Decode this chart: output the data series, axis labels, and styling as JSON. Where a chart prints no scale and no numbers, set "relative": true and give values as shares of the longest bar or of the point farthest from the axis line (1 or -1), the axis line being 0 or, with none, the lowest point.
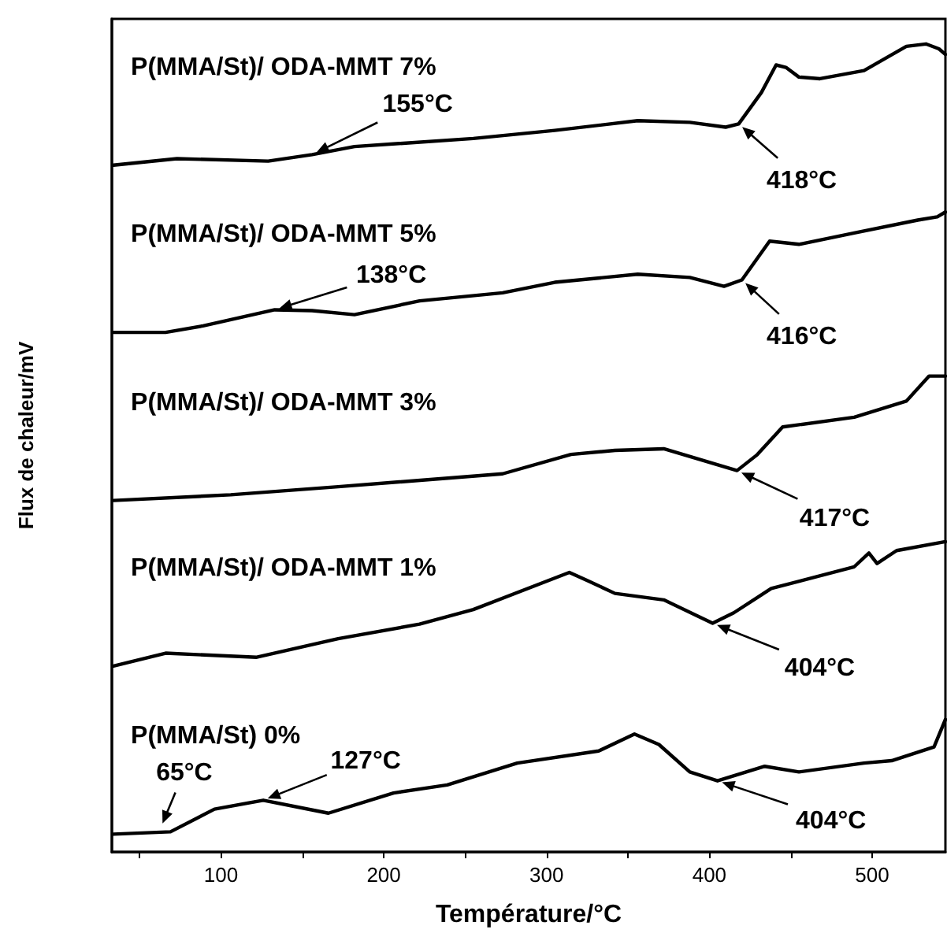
{
  "chart_data": {
    "type": "line",
    "relative": true,
    "xlabel": "Température/°C",
    "ylabel": "Flux de chaleur/mV",
    "xlim": [
      33,
      545
    ],
    "xticks": [
      {
        "value": 50,
        "label": null
      },
      100,
      {
        "value": 150,
        "label": null
      },
      200,
      {
        "value": 250,
        "label": null
      },
      300,
      {
        "value": 350,
        "label": null
      },
      400,
      {
        "value": 450,
        "label": null
      },
      500
    ],
    "grid": false,
    "series": [
      {
        "name": "P(MMA/St)/ ODA-MMT 7%",
        "color": "#000000",
        "x": [
          34,
          73,
          129,
          156,
          182,
          255,
          305,
          356,
          388,
          410,
          418,
          432,
          441,
          447,
          455,
          468,
          495,
          521,
          533,
          541,
          545
        ],
        "values": [
          0.85,
          0.858,
          0.855,
          0.863,
          0.873,
          0.883,
          0.893,
          0.905,
          0.903,
          0.897,
          0.901,
          0.94,
          0.974,
          0.971,
          0.959,
          0.957,
          0.967,
          0.997,
          1.0,
          0.994,
          0.987
        ]
      },
      {
        "name": "P(MMA/St)/ ODA-MMT 5%",
        "color": "#000000",
        "x": [
          34,
          66,
          89,
          133,
          156,
          182,
          222,
          273,
          305,
          356,
          388,
          409,
          420,
          437,
          455,
          489,
          528,
          540,
          545
        ],
        "values": [
          0.643,
          0.643,
          0.651,
          0.671,
          0.67,
          0.665,
          0.682,
          0.692,
          0.705,
          0.715,
          0.711,
          0.7,
          0.708,
          0.756,
          0.752,
          0.766,
          0.782,
          0.786,
          0.792
        ]
      },
      {
        "name": "P(MMA/St)/ ODA-MMT 3%",
        "color": "#000000",
        "x": [
          34,
          106,
          172,
          273,
          315,
          342,
          372,
          417,
          429,
          445,
          489,
          521,
          535,
          545
        ],
        "values": [
          0.435,
          0.442,
          0.452,
          0.468,
          0.492,
          0.497,
          0.499,
          0.472,
          0.491,
          0.526,
          0.538,
          0.558,
          0.589,
          0.589
        ]
      },
      {
        "name": "P(MMA/St)/ ODA-MMT 1%",
        "color": "#000000",
        "x": [
          34,
          66,
          122,
          172,
          222,
          255,
          314,
          325,
          342,
          372,
          402,
          415,
          438,
          489,
          498,
          503,
          515,
          545
        ],
        "values": [
          0.23,
          0.246,
          0.241,
          0.264,
          0.282,
          0.3,
          0.346,
          0.336,
          0.32,
          0.312,
          0.283,
          0.296,
          0.326,
          0.353,
          0.37,
          0.357,
          0.373,
          0.384
        ]
      },
      {
        "name": "P(MMA/St) 0%",
        "color": "#000000",
        "x": [
          34,
          69,
          96,
          126,
          166,
          206,
          239,
          282,
          332,
          354,
          369,
          388,
          405,
          434,
          455,
          495,
          512,
          538,
          545
        ],
        "values": [
          0.022,
          0.025,
          0.053,
          0.064,
          0.048,
          0.073,
          0.083,
          0.11,
          0.125,
          0.146,
          0.133,
          0.099,
          0.088,
          0.106,
          0.099,
          0.11,
          0.113,
          0.13,
          0.164
        ]
      }
    ],
    "annotations": [
      {
        "text": "155°C",
        "x": 156,
        "y": 0.863
      },
      {
        "text": "418°C",
        "x": 418,
        "y": 0.901
      },
      {
        "text": "138°C",
        "x": 133,
        "y": 0.671
      },
      {
        "text": "416°C",
        "x": 420,
        "y": 0.708
      },
      {
        "text": "417°C",
        "x": 417,
        "y": 0.472
      },
      {
        "text": "404°C",
        "x": 402,
        "y": 0.283
      },
      {
        "text": "65°C",
        "x": 63,
        "y": 0.03
      },
      {
        "text": "127°C",
        "x": 126,
        "y": 0.064
      },
      {
        "text": "404°C",
        "x": 405,
        "y": 0.088
      }
    ]
  }
}
